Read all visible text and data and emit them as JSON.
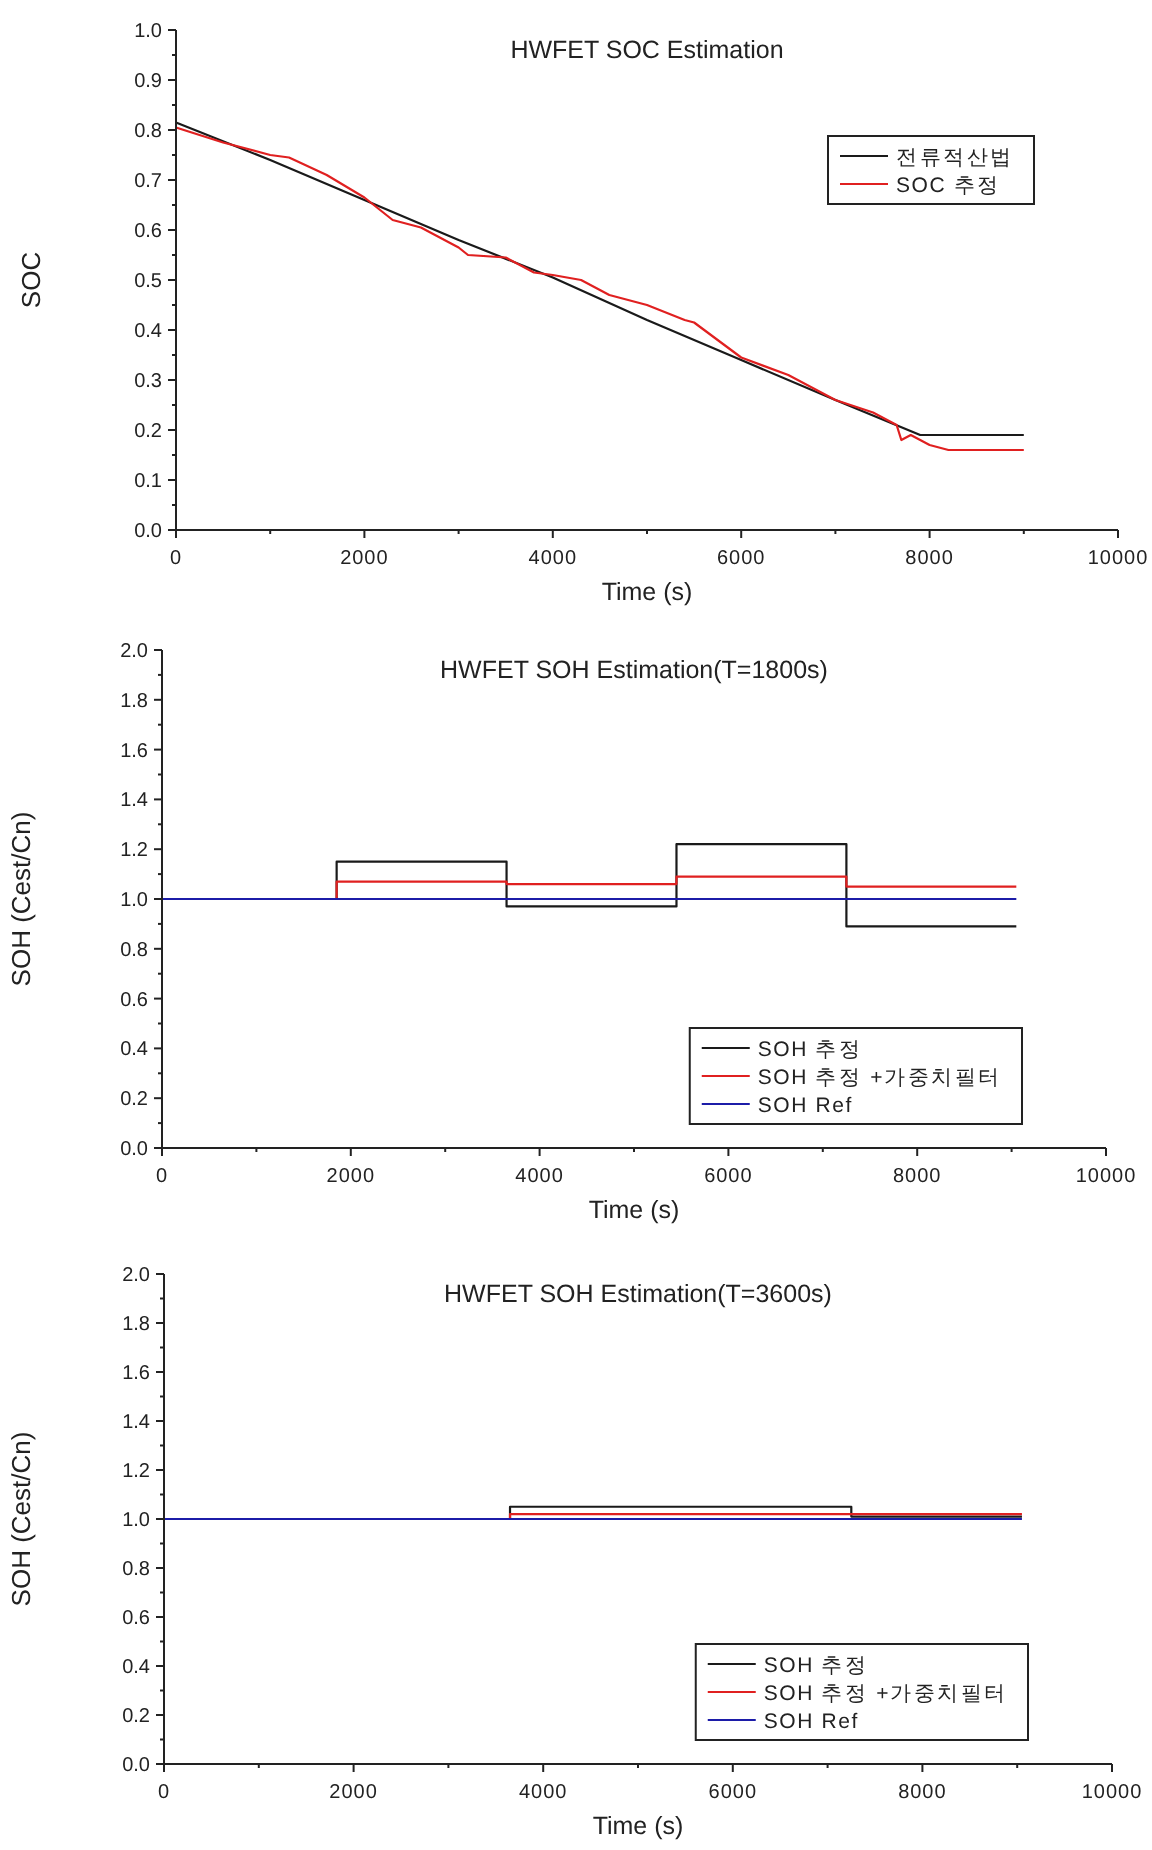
{
  "chart_data": [
    {
      "type": "line",
      "title": "HWFET SOC Estimation",
      "xlabel": "Time (s)",
      "ylabel": "SOC",
      "xlim": [
        0,
        10000
      ],
      "ylim": [
        0,
        1
      ],
      "xticks": [
        0,
        2000,
        4000,
        6000,
        8000,
        10000
      ],
      "yticks": [
        {
          "value": 0,
          "label": "0.0"
        },
        {
          "value": 0.1,
          "label": "0.1"
        },
        {
          "value": 0.2,
          "label": "0.2"
        },
        {
          "value": 0.3,
          "label": "0.3"
        },
        {
          "value": 0.4,
          "label": "0.4"
        },
        {
          "value": 0.5,
          "label": "0.5"
        },
        {
          "value": 0.6,
          "label": "0.6"
        },
        {
          "value": 0.7,
          "label": "0.7"
        },
        {
          "value": 0.8,
          "label": "0.8"
        },
        {
          "value": 0.9,
          "label": "0.9"
        },
        {
          "value": 1,
          "label": "1.0"
        }
      ],
      "legend": "top right",
      "series": [
        {
          "name": "전류적산법",
          "color": "#1a1a1a",
          "x": [
            0,
            1000,
            2000,
            3000,
            4000,
            5000,
            6000,
            7000,
            7900,
            9000
          ],
          "values": [
            0.815,
            0.74,
            0.66,
            0.58,
            0.505,
            0.42,
            0.34,
            0.26,
            0.19,
            0.19
          ]
        },
        {
          "name": "SOC 추정",
          "color": "#e02020",
          "x": [
            0,
            500,
            1000,
            1200,
            1600,
            2000,
            2300,
            2600,
            3000,
            3100,
            3500,
            3800,
            4000,
            4300,
            4600,
            5000,
            5400,
            5500,
            6000,
            6500,
            7000,
            7400,
            7650,
            7700,
            7800,
            8000,
            8200,
            9000
          ],
          "values": [
            0.805,
            0.775,
            0.75,
            0.745,
            0.71,
            0.665,
            0.62,
            0.605,
            0.565,
            0.55,
            0.545,
            0.515,
            0.51,
            0.5,
            0.47,
            0.45,
            0.42,
            0.415,
            0.345,
            0.31,
            0.26,
            0.235,
            0.21,
            0.18,
            0.19,
            0.17,
            0.16,
            0.16
          ]
        }
      ]
    },
    {
      "type": "step",
      "title": "HWFET SOH Estimation(T=1800s)",
      "xlabel": "Time (s)",
      "ylabel": "SOH (Cest/Cn)",
      "xlim": [
        0,
        10000
      ],
      "ylim": [
        0,
        2
      ],
      "xticks": [
        0,
        2000,
        4000,
        6000,
        8000,
        10000
      ],
      "yticks": [
        {
          "value": 0,
          "label": "0.0"
        },
        {
          "value": 0.2,
          "label": "0.2"
        },
        {
          "value": 0.4,
          "label": "0.4"
        },
        {
          "value": 0.6,
          "label": "0.6"
        },
        {
          "value": 0.8,
          "label": "0.8"
        },
        {
          "value": 1,
          "label": "1.0"
        },
        {
          "value": 1.2,
          "label": "1.2"
        },
        {
          "value": 1.4,
          "label": "1.4"
        },
        {
          "value": 1.6,
          "label": "1.6"
        },
        {
          "value": 1.8,
          "label": "1.8"
        },
        {
          "value": 2,
          "label": "2.0"
        }
      ],
      "legend": "bottom right",
      "series": [
        {
          "name": "SOH 추정",
          "color": "#1a1a1a",
          "x": [
            0,
            1850,
            3650,
            5450,
            7250,
            9050
          ],
          "values": [
            1.0,
            1.15,
            0.97,
            1.22,
            0.89,
            0.89
          ]
        },
        {
          "name": "SOH 추정 +가중치필터",
          "color": "#e02020",
          "x": [
            0,
            1850,
            3650,
            5450,
            7250,
            9050
          ],
          "values": [
            1.0,
            1.07,
            1.06,
            1.09,
            1.05,
            1.05
          ]
        },
        {
          "name": "SOH Ref",
          "color": "#1c1ca8",
          "x": [
            0,
            9050
          ],
          "values": [
            1.0,
            1.0
          ]
        }
      ]
    },
    {
      "type": "step",
      "title": "HWFET SOH Estimation(T=3600s)",
      "xlabel": "Time (s)",
      "ylabel": "SOH (Cest/Cn)",
      "xlim": [
        0,
        10000
      ],
      "ylim": [
        0,
        2
      ],
      "xticks": [
        0,
        2000,
        4000,
        6000,
        8000,
        10000
      ],
      "yticks": [
        {
          "value": 0,
          "label": "0.0"
        },
        {
          "value": 0.2,
          "label": "0.2"
        },
        {
          "value": 0.4,
          "label": "0.4"
        },
        {
          "value": 0.6,
          "label": "0.6"
        },
        {
          "value": 0.8,
          "label": "0.8"
        },
        {
          "value": 1,
          "label": "1.0"
        },
        {
          "value": 1.2,
          "label": "1.2"
        },
        {
          "value": 1.4,
          "label": "1.4"
        },
        {
          "value": 1.6,
          "label": "1.6"
        },
        {
          "value": 1.8,
          "label": "1.8"
        },
        {
          "value": 2,
          "label": "2.0"
        }
      ],
      "legend": "bottom right",
      "series": [
        {
          "name": "SOH 추정",
          "color": "#1a1a1a",
          "x": [
            0,
            3650,
            7250,
            9050
          ],
          "values": [
            1.0,
            1.05,
            1.01,
            1.01
          ]
        },
        {
          "name": "SOH 추정 +가중치필터",
          "color": "#e02020",
          "x": [
            0,
            3650,
            7250,
            9050
          ],
          "values": [
            1.0,
            1.02,
            1.02,
            1.02
          ]
        },
        {
          "name": "SOH Ref",
          "color": "#1c1ca8",
          "x": [
            0,
            9050
          ],
          "values": [
            1.0,
            1.0
          ]
        }
      ]
    }
  ]
}
